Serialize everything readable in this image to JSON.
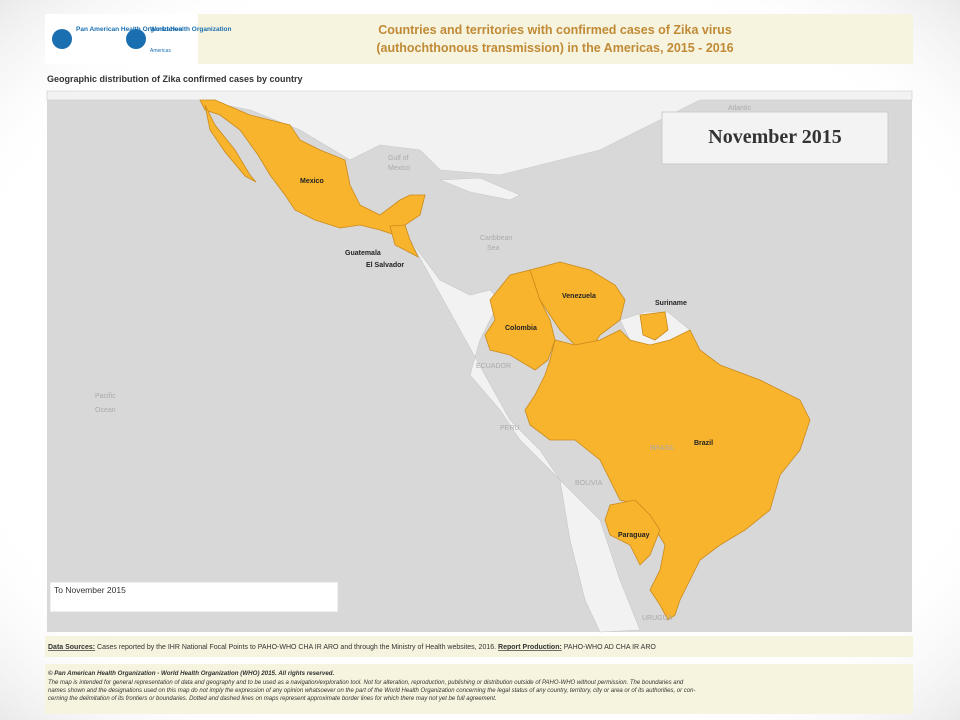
{
  "header": {
    "logos": [
      "Pan American Health Organization",
      "World Health Organization",
      "Americas"
    ],
    "title": [
      "Countries and territories with confirmed cases of Zika virus",
      "(authochthonous transmission) in the Americas, 2015 - 2016"
    ]
  },
  "subtitle": "Geographic distribution of Zika confirmed cases by country",
  "map": {
    "period_label": "November 2015",
    "legend": "To November 2015",
    "countries": [
      "Mexico",
      "Guatemala",
      "El Salvador",
      "Colombia",
      "Venezuela",
      "Suriname",
      "Brazil",
      "Paraguay"
    ],
    "other_labels": [
      "Atlantic",
      "Gulf of",
      "Mexico",
      "Caribbean",
      "Sea",
      "Pacific",
      "Ocean",
      "ECUADOR",
      "PERU",
      "BOLIVIA",
      "BRASIL",
      "URUGUA"
    ]
  },
  "footer": {
    "sources_label": "Data Sources:",
    "sources_text": "Cases reported by the IHR National Focal Points to PAHO-WHO CHA IR ARO and through the Ministry of Health websites, 2016.",
    "production_label": "Report Production:",
    "production_text": "PAHO-WHO AD CHA IR ARO",
    "copyright": "© Pan American Health Organization - World Health Organization (WHO) 2015. All rights reserved.",
    "disclaimer": [
      "The map is intended for general representation of data and geography and to be used as a navigation/exploration tool. Not for alteration, reproduction, publishing or distribution outside of PAHO-WHO without permission. The boundaries and",
      "names shown and the designations used on this map do not imply the expression of any opinion whatsoever on the part of the World Health Organization concerning the legal status of any country, territory, city or area or of its authorities, or con-",
      "cerning the delimitation of its frontiers or boundaries. Dotted and dashed lines on maps represent approximate border lines for which there may not yet be full agreement."
    ]
  }
}
